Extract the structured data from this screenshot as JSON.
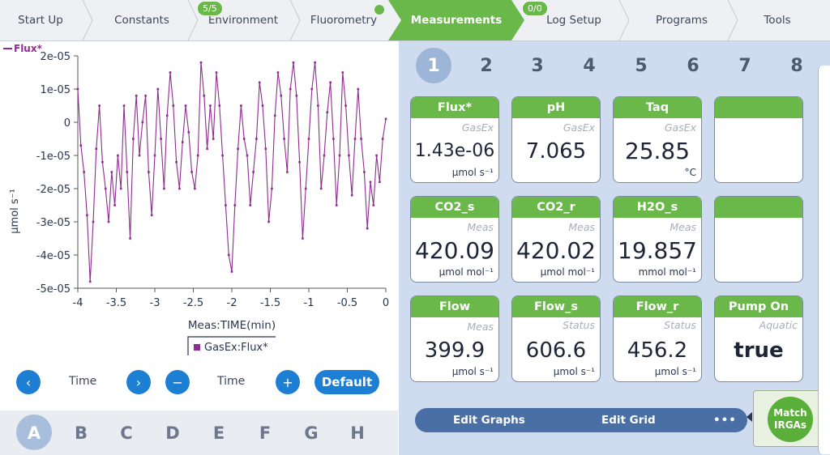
{
  "nav": {
    "tabs": [
      "Start Up",
      "Constants",
      "Environment",
      "Fluorometry",
      "Measurements",
      "Log Setup",
      "Programs",
      "Tools"
    ],
    "active": "Measurements",
    "environment_badge": "5/5",
    "logsetup_badge": "0/0",
    "accent": "#6ab84a"
  },
  "graph": {
    "legend_top": "Flux*",
    "legend_box": "GasEx:Flux*",
    "controls": {
      "prev": "‹",
      "next": "›",
      "minus": "−",
      "plus": "+",
      "left_label": "Time",
      "right_label": "Time",
      "default": "Default"
    },
    "letters": [
      "A",
      "B",
      "C",
      "D",
      "E",
      "F",
      "G",
      "H"
    ],
    "active_letter": "A"
  },
  "chart_data": {
    "type": "line",
    "xlabel": "Meas:TIME(min)",
    "ylabel": "µmol s⁻¹",
    "xlim": [
      -4,
      0
    ],
    "ylim": [
      -5e-05,
      2e-05
    ],
    "xticks": [
      "-4",
      "-3.5",
      "-3",
      "-2.5",
      "-2",
      "-1.5",
      "-1",
      "-0.5",
      "0"
    ],
    "yticks": [
      "2e-05",
      "1e-05",
      "0",
      "-1e-05",
      "-2e-05",
      "-3e-05",
      "-4e-05",
      "-5e-05"
    ],
    "series": [
      {
        "name": "GasEx:Flux*",
        "color": "#8e2c8f",
        "x": [
          -4.0,
          -3.96,
          -3.92,
          -3.88,
          -3.84,
          -3.8,
          -3.76,
          -3.72,
          -3.68,
          -3.64,
          -3.6,
          -3.56,
          -3.52,
          -3.48,
          -3.44,
          -3.4,
          -3.36,
          -3.32,
          -3.28,
          -3.24,
          -3.2,
          -3.16,
          -3.12,
          -3.08,
          -3.04,
          -3.0,
          -2.96,
          -2.92,
          -2.88,
          -2.84,
          -2.8,
          -2.76,
          -2.72,
          -2.68,
          -2.64,
          -2.6,
          -2.56,
          -2.52,
          -2.48,
          -2.44,
          -2.4,
          -2.36,
          -2.32,
          -2.28,
          -2.24,
          -2.2,
          -2.16,
          -2.12,
          -2.08,
          -2.04,
          -2.0,
          -1.96,
          -1.92,
          -1.88,
          -1.84,
          -1.8,
          -1.76,
          -1.72,
          -1.68,
          -1.64,
          -1.6,
          -1.56,
          -1.52,
          -1.48,
          -1.44,
          -1.4,
          -1.36,
          -1.32,
          -1.28,
          -1.24,
          -1.2,
          -1.16,
          -1.12,
          -1.08,
          -1.04,
          -1.0,
          -0.96,
          -0.92,
          -0.88,
          -0.84,
          -0.8,
          -0.76,
          -0.72,
          -0.68,
          -0.64,
          -0.6,
          -0.56,
          -0.52,
          -0.48,
          -0.44,
          -0.4,
          -0.36,
          -0.32,
          -0.28,
          -0.24,
          -0.2,
          -0.16,
          -0.12,
          -0.08,
          -0.04,
          0.0
        ],
        "y": [
          1e-05,
          -7e-06,
          -1.5e-05,
          -2.8e-05,
          -4.8e-05,
          -3e-05,
          -8e-06,
          5e-06,
          -1.2e-05,
          -2e-05,
          -3e-05,
          -1.5e-05,
          -2.5e-05,
          -1e-05,
          -2e-05,
          5e-06,
          -1.5e-05,
          -3.5e-05,
          -5e-06,
          8e-06,
          -1e-05,
          0.0,
          8e-06,
          -1.5e-05,
          -2.8e-05,
          -1e-05,
          1e-05,
          -5e-06,
          -2e-05,
          2e-06,
          1.5e-05,
          5e-06,
          -1.2e-05,
          -2e-05,
          -6e-06,
          5e-06,
          -3e-06,
          -1.5e-05,
          -2e-05,
          -1e-05,
          1.8e-05,
          8e-06,
          -8e-06,
          5e-06,
          -5e-06,
          1.5e-05,
          5e-06,
          -1e-05,
          -2.5e-05,
          -4e-05,
          -4.5e-05,
          -2.5e-05,
          -8e-06,
          5e-06,
          -5e-06,
          -1e-05,
          -2.5e-05,
          -1.5e-05,
          -5e-06,
          1.2e-05,
          5e-06,
          -8e-06,
          -3e-05,
          -2e-05,
          2e-06,
          1.5e-05,
          8e-06,
          -5e-06,
          -1.5e-05,
          1e-05,
          1.8e-05,
          8e-06,
          -1.2e-05,
          -3.5e-05,
          -2e-05,
          -5e-06,
          1e-05,
          1.8e-05,
          5e-06,
          -2e-05,
          -1e-05,
          3e-06,
          1.2e-05,
          -5e-06,
          -2.5e-05,
          -1e-05,
          1.5e-05,
          5e-06,
          -1e-05,
          -2.2e-05,
          -5e-06,
          1e-05,
          -5e-06,
          -1.5e-05,
          -3.2e-05,
          -1.8e-05,
          -2.5e-05,
          -1e-05,
          -1.8e-05,
          -5e-06,
          1e-06
        ]
      }
    ],
    "grid": false,
    "legend": "bottom-center"
  },
  "meas": {
    "numbers": [
      "1",
      "2",
      "3",
      "4",
      "5",
      "6",
      "7",
      "8"
    ],
    "active_number": "1",
    "cards": [
      {
        "title": "Flux*",
        "group": "GasEx",
        "value": "1.43e-06",
        "unit": "µmol s⁻¹"
      },
      {
        "title": "pH",
        "group": "GasEx",
        "value": "7.065",
        "unit": ""
      },
      {
        "title": "Taq",
        "group": "GasEx",
        "value": "25.85",
        "unit": "°C"
      },
      {
        "title": "",
        "group": "",
        "value": "",
        "unit": ""
      },
      {
        "title": "CO2_s",
        "group": "Meas",
        "value": "420.09",
        "unit": "µmol mol⁻¹"
      },
      {
        "title": "CO2_r",
        "group": "Meas",
        "value": "420.02",
        "unit": "µmol mol⁻¹"
      },
      {
        "title": "H2O_s",
        "group": "Meas",
        "value": "19.857",
        "unit": "mmol mol⁻¹"
      },
      {
        "title": "",
        "group": "",
        "value": "",
        "unit": ""
      },
      {
        "title": "Flow",
        "group": "Meas",
        "value": "399.9",
        "unit": "µmol s⁻¹"
      },
      {
        "title": "Flow_s",
        "group": "Status",
        "value": "606.6",
        "unit": "µmol s⁻¹"
      },
      {
        "title": "Flow_r",
        "group": "Status",
        "value": "456.2",
        "unit": "µmol s⁻¹"
      },
      {
        "title": "Pump On",
        "group": "Aquatic",
        "value": "true",
        "unit": ""
      }
    ],
    "bottom": {
      "edit_graphs": "Edit Graphs",
      "edit_grid": "Edit Grid",
      "more": "•••"
    },
    "match": {
      "line1": "Match",
      "line2": "IRGAs"
    }
  }
}
